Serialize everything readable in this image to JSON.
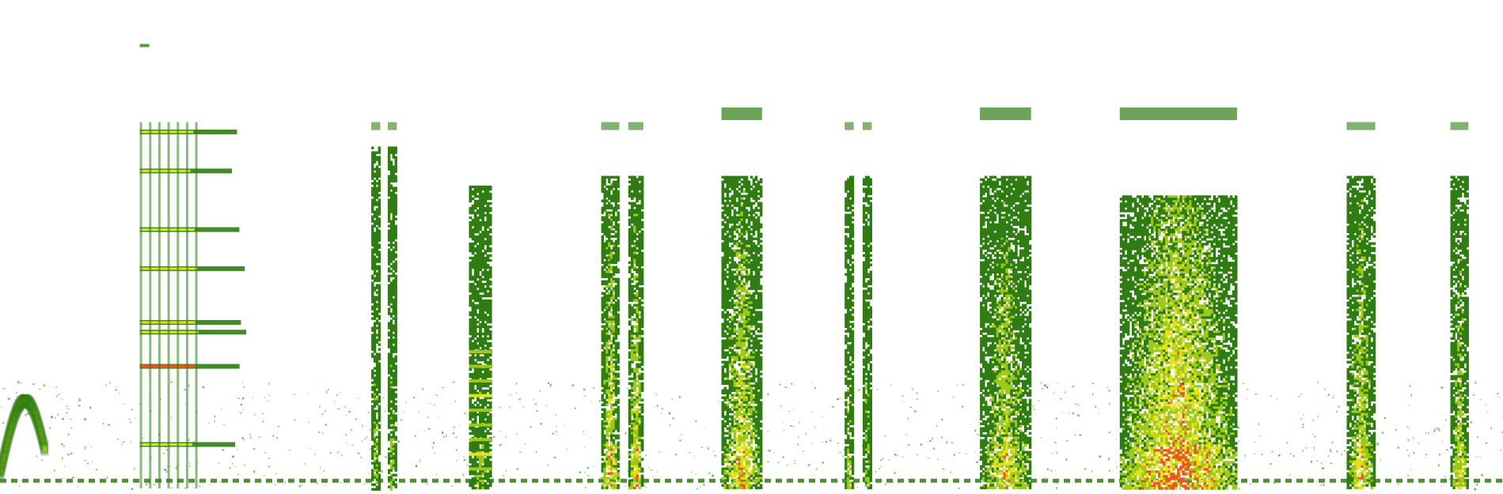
{
  "colors": {
    "background": "#ffffff",
    "low": "#2f7d12",
    "mid": "#9fc918",
    "high": "#e6e21a",
    "peak": "#f0551e"
  },
  "chart_data": {
    "type": "heatmap",
    "title": "",
    "xlabel": "",
    "ylabel": "",
    "grid": false,
    "legend": "none",
    "x_range": [
      0,
      1
    ],
    "y_range": [
      0,
      1
    ],
    "events": [
      {
        "id": "chirp-left",
        "kind": "sweep",
        "x": [
          0.0,
          0.03
        ],
        "y": [
          0.0,
          0.25
        ],
        "peak": 0.8
      },
      {
        "id": "harmonic-stack",
        "kind": "harmonics",
        "x": [
          0.093,
          0.16
        ],
        "harmonic_y": [
          0.09,
          0.25,
          0.32,
          0.34,
          0.45,
          0.53,
          0.65,
          0.73
        ],
        "peak": 0.9
      },
      {
        "id": "thin-pair",
        "kind": "columns",
        "columns": [
          [
            0.247,
            0.253
          ],
          [
            0.258,
            0.264
          ]
        ],
        "y": [
          0.0,
          0.7
        ],
        "peak": 0.6
      },
      {
        "id": "speckle-column",
        "kind": "banded-column",
        "x": [
          0.312,
          0.327
        ],
        "y": [
          0.0,
          0.62
        ],
        "peak": 0.6
      },
      {
        "id": "twin-columns-a",
        "kind": "columns",
        "columns": [
          [
            0.4,
            0.412
          ],
          [
            0.418,
            0.428
          ]
        ],
        "y": [
          0.0,
          0.64
        ],
        "peak": 0.85
      },
      {
        "id": "broadband-block",
        "kind": "block",
        "x": [
          0.48,
          0.507
        ],
        "y": [
          0.0,
          0.64
        ],
        "peak": 0.8
      },
      {
        "id": "narrow-whistle",
        "kind": "columns",
        "columns": [
          [
            0.562,
            0.568
          ],
          [
            0.574,
            0.58
          ]
        ],
        "y": [
          0.0,
          0.64
        ],
        "peak": 0.6
      },
      {
        "id": "split-block",
        "kind": "block",
        "x": [
          0.652,
          0.686
        ],
        "y": [
          0.0,
          0.64
        ],
        "peak": 0.7
      },
      {
        "id": "dense-chorus",
        "kind": "block",
        "x": [
          0.745,
          0.823
        ],
        "y": [
          0.0,
          0.6
        ],
        "peak": 1.0
      },
      {
        "id": "right-column-a",
        "kind": "columns",
        "columns": [
          [
            0.896,
            0.915
          ]
        ],
        "y": [
          0.0,
          0.64
        ],
        "peak": 0.75
      },
      {
        "id": "right-column-b",
        "kind": "columns",
        "columns": [
          [
            0.965,
            0.977
          ]
        ],
        "y": [
          0.0,
          0.64
        ],
        "peak": 0.7
      }
    ],
    "baseline_noise_y": 0.015
  }
}
